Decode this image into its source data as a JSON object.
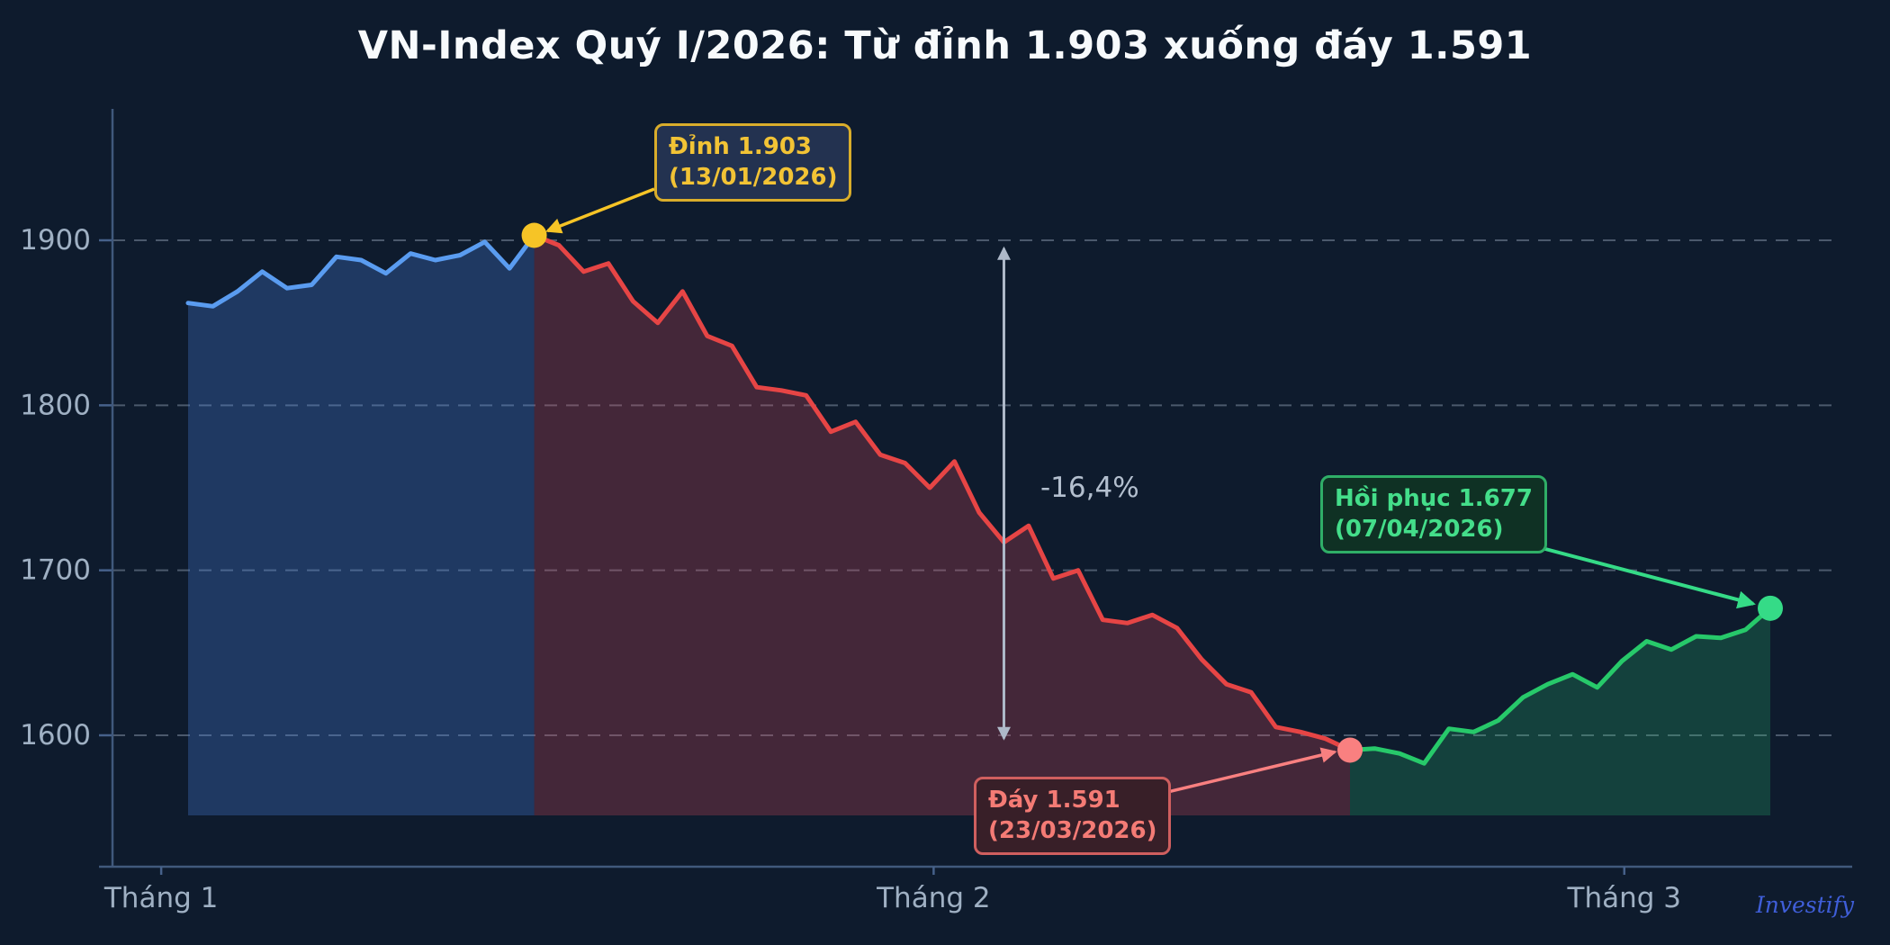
{
  "title": "VN-Index Quý I/2026: Từ đỉnh 1.903 xuống đáy 1.591",
  "watermark": "Investify",
  "drawdown": {
    "label": "-16,4%"
  },
  "annotations": {
    "peak": {
      "line1": "Đỉnh 1.903",
      "line2": "(13/01/2026)"
    },
    "trough": {
      "line1": "Đáy 1.591",
      "line2": "(23/03/2026)"
    },
    "recovery": {
      "line1": "Hồi phục 1.677",
      "line2": "(07/04/2026)"
    }
  },
  "colors": {
    "background": "#0e1b2d",
    "uptrend_line": "#5a9cf0",
    "decline_line": "#e64545",
    "recovery_line": "#27c96a",
    "peak_accent": "#f6c426",
    "trough_accent": "#f98080",
    "recovery_accent": "#35db87",
    "axis_text": "#9fb0c3",
    "measure_arrow": "#aeb9c9"
  },
  "chart_data": {
    "type": "area",
    "title": "VN-Index Quý I/2026: Từ đỉnh 1.903 xuống đáy 1.591",
    "series_name": "VN-Index",
    "xlabel": "",
    "ylabel": "",
    "x_tick_labels": [
      "Tháng 1",
      "Tháng 2",
      "Tháng 3"
    ],
    "y_ticks": [
      1600,
      1700,
      1800,
      1900
    ],
    "ylim": [
      1552,
      1980
    ],
    "grid": "horizontal dashed",
    "legend": "none",
    "values": [
      1862,
      1860,
      1869,
      1881,
      1871,
      1873,
      1890,
      1888,
      1880,
      1892,
      1888,
      1891,
      1899,
      1883,
      1903,
      1897,
      1881,
      1886,
      1863,
      1850,
      1869,
      1842,
      1836,
      1811,
      1809,
      1806,
      1784,
      1790,
      1770,
      1765,
      1750,
      1766,
      1735,
      1717,
      1727,
      1695,
      1700,
      1670,
      1668,
      1673,
      1665,
      1646,
      1631,
      1626,
      1605,
      1602,
      1598,
      1591,
      1592,
      1589,
      1583,
      1604,
      1602,
      1609,
      1623,
      1631,
      1637,
      1629,
      1645,
      1657,
      1652,
      1660,
      1659,
      1664,
      1677
    ],
    "phases": [
      {
        "name": "uptrend",
        "start_index": 0,
        "end_index": 14,
        "line_color": "#5a9cf0",
        "fill_color": "rgba(74,130,222,0.30)"
      },
      {
        "name": "decline",
        "start_index": 14,
        "end_index": 47,
        "line_color": "#e64545",
        "fill_color": "rgba(226,74,94,0.26)"
      },
      {
        "name": "recovery",
        "start_index": 47,
        "end_index": 64,
        "line_color": "#27c96a",
        "fill_color": "rgba(45,200,120,0.22)"
      }
    ],
    "key_points": [
      {
        "id": "peak",
        "index": 14,
        "value": 1903,
        "label": "Đỉnh 1.903",
        "date": "13/01/2026",
        "color": "#f6c426"
      },
      {
        "id": "trough",
        "index": 47,
        "value": 1591,
        "label": "Đáy 1.591",
        "date": "23/03/2026",
        "color": "#f98080"
      },
      {
        "id": "recovery",
        "index": 64,
        "value": 1677,
        "label": "Hồi phục 1.677",
        "date": "07/04/2026",
        "color": "#35db87"
      }
    ],
    "drawdown_percent": "-16,4%"
  }
}
